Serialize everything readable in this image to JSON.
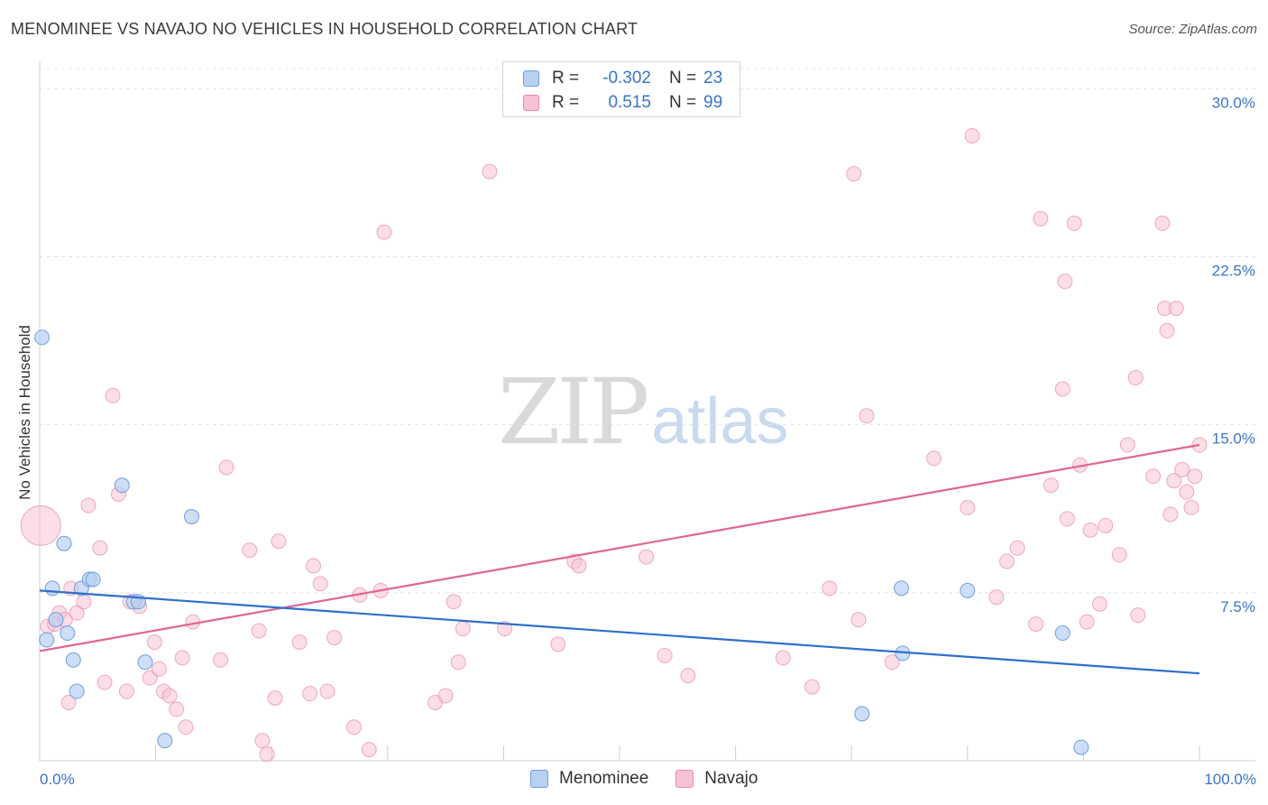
{
  "title": "MENOMINEE VS NAVAJO NO VEHICLES IN HOUSEHOLD CORRELATION CHART",
  "source": "Source: ZipAtlas.com",
  "watermark": {
    "zip": "ZIP",
    "atlas": "atlas"
  },
  "legend": {
    "r_label": "R =",
    "n_label": "N =",
    "rows": [
      {
        "series": "Menominee",
        "r": "-0.302",
        "n": "23"
      },
      {
        "series": "Navajo",
        "r": "0.515",
        "n": "99"
      }
    ]
  },
  "colors": {
    "menominee_fill": "#b8d0f2",
    "menominee_stroke": "#6f9fdc",
    "menominee_line": "#2f6fcb",
    "navajo_fill": "#f7c3d3",
    "navajo_stroke": "#e88aa8",
    "navajo_line": "#e06690",
    "tick_label": "#3a74c8"
  },
  "chart_data": {
    "type": "scatter",
    "title": "MENOMINEE VS NAVAJO NO VEHICLES IN HOUSEHOLD CORRELATION CHART",
    "xlabel": "",
    "ylabel": "No Vehicles in Household",
    "xlim": [
      0,
      100
    ],
    "ylim": [
      0,
      30.9
    ],
    "x_tick_labels": [
      "0.0%",
      "100.0%"
    ],
    "y_ticks": [
      7.5,
      15.0,
      22.5,
      30.0
    ],
    "y_tick_labels": [
      "7.5%",
      "15.0%",
      "22.5%",
      "30.0%"
    ],
    "grid": true,
    "series": [
      {
        "name": "Menominee",
        "points": [
          [
            0.2,
            18.9
          ],
          [
            0.6,
            5.4
          ],
          [
            1.1,
            7.7
          ],
          [
            1.4,
            6.3
          ],
          [
            2.1,
            9.7
          ],
          [
            2.4,
            5.7
          ],
          [
            2.9,
            4.5
          ],
          [
            3.2,
            3.1
          ],
          [
            3.6,
            7.7
          ],
          [
            4.3,
            8.1
          ],
          [
            4.6,
            8.1
          ],
          [
            7.1,
            12.3
          ],
          [
            8.1,
            7.1
          ],
          [
            8.5,
            7.1
          ],
          [
            9.1,
            4.4
          ],
          [
            10.8,
            0.9
          ],
          [
            13.1,
            10.9
          ],
          [
            70.9,
            2.1
          ],
          [
            74.3,
            7.7
          ],
          [
            74.4,
            4.8
          ],
          [
            80.0,
            7.6
          ],
          [
            88.2,
            5.7
          ],
          [
            89.8,
            0.6
          ]
        ],
        "trend": {
          "x": [
            0,
            100
          ],
          "y": [
            7.6,
            3.9
          ]
        }
      },
      {
        "name": "Navajo",
        "points": [
          [
            0.1,
            10.5
          ],
          [
            0.7,
            6.0
          ],
          [
            1.3,
            6.1
          ],
          [
            1.7,
            6.6
          ],
          [
            2.2,
            6.3
          ],
          [
            2.5,
            2.6
          ],
          [
            2.7,
            7.7
          ],
          [
            3.2,
            6.6
          ],
          [
            3.8,
            7.1
          ],
          [
            4.2,
            11.4
          ],
          [
            5.2,
            9.5
          ],
          [
            5.6,
            3.5
          ],
          [
            6.3,
            16.3
          ],
          [
            6.8,
            11.9
          ],
          [
            7.5,
            3.1
          ],
          [
            7.8,
            7.1
          ],
          [
            8.6,
            6.9
          ],
          [
            9.5,
            3.7
          ],
          [
            9.9,
            5.3
          ],
          [
            10.3,
            4.1
          ],
          [
            10.7,
            3.1
          ],
          [
            11.2,
            2.9
          ],
          [
            11.8,
            2.3
          ],
          [
            12.3,
            4.6
          ],
          [
            12.6,
            1.5
          ],
          [
            13.2,
            6.2
          ],
          [
            15.6,
            4.5
          ],
          [
            16.1,
            13.1
          ],
          [
            18.1,
            9.4
          ],
          [
            18.9,
            5.8
          ],
          [
            19.2,
            0.9
          ],
          [
            19.6,
            0.3
          ],
          [
            20.3,
            2.8
          ],
          [
            20.6,
            9.8
          ],
          [
            22.4,
            5.3
          ],
          [
            23.3,
            3.0
          ],
          [
            23.6,
            8.7
          ],
          [
            24.2,
            7.9
          ],
          [
            24.8,
            3.1
          ],
          [
            25.4,
            5.5
          ],
          [
            27.1,
            1.5
          ],
          [
            27.6,
            7.4
          ],
          [
            28.4,
            0.5
          ],
          [
            29.4,
            7.6
          ],
          [
            29.7,
            23.6
          ],
          [
            34.1,
            2.6
          ],
          [
            35.0,
            2.9
          ],
          [
            35.7,
            7.1
          ],
          [
            36.1,
            4.4
          ],
          [
            36.5,
            5.9
          ],
          [
            38.8,
            26.3
          ],
          [
            40.1,
            5.9
          ],
          [
            44.7,
            5.2
          ],
          [
            46.1,
            8.9
          ],
          [
            46.5,
            8.7
          ],
          [
            52.3,
            9.1
          ],
          [
            53.9,
            4.7
          ],
          [
            55.9,
            3.8
          ],
          [
            64.1,
            4.6
          ],
          [
            66.6,
            3.3
          ],
          [
            68.1,
            7.7
          ],
          [
            70.2,
            26.2
          ],
          [
            70.6,
            6.3
          ],
          [
            71.3,
            15.4
          ],
          [
            73.5,
            4.4
          ],
          [
            77.1,
            13.5
          ],
          [
            80.0,
            11.3
          ],
          [
            80.4,
            27.9
          ],
          [
            82.5,
            7.3
          ],
          [
            83.4,
            8.9
          ],
          [
            84.3,
            9.5
          ],
          [
            85.9,
            6.1
          ],
          [
            86.3,
            24.2
          ],
          [
            87.2,
            12.3
          ],
          [
            88.2,
            16.6
          ],
          [
            88.4,
            21.4
          ],
          [
            88.6,
            10.8
          ],
          [
            89.2,
            24.0
          ],
          [
            89.7,
            13.2
          ],
          [
            90.3,
            6.2
          ],
          [
            90.6,
            10.3
          ],
          [
            91.4,
            7.0
          ],
          [
            91.9,
            10.5
          ],
          [
            93.1,
            9.2
          ],
          [
            93.8,
            14.1
          ],
          [
            94.5,
            17.1
          ],
          [
            94.7,
            6.5
          ],
          [
            96.0,
            12.7
          ],
          [
            96.8,
            24.0
          ],
          [
            97.0,
            20.2
          ],
          [
            97.2,
            19.2
          ],
          [
            97.5,
            11.0
          ],
          [
            97.8,
            12.5
          ],
          [
            98.0,
            20.2
          ],
          [
            98.5,
            13.0
          ],
          [
            98.9,
            12.0
          ],
          [
            99.3,
            11.3
          ],
          [
            99.6,
            12.7
          ],
          [
            100.0,
            14.1
          ]
        ],
        "trend": {
          "x": [
            0,
            100
          ],
          "y": [
            4.9,
            14.1
          ]
        }
      }
    ]
  }
}
